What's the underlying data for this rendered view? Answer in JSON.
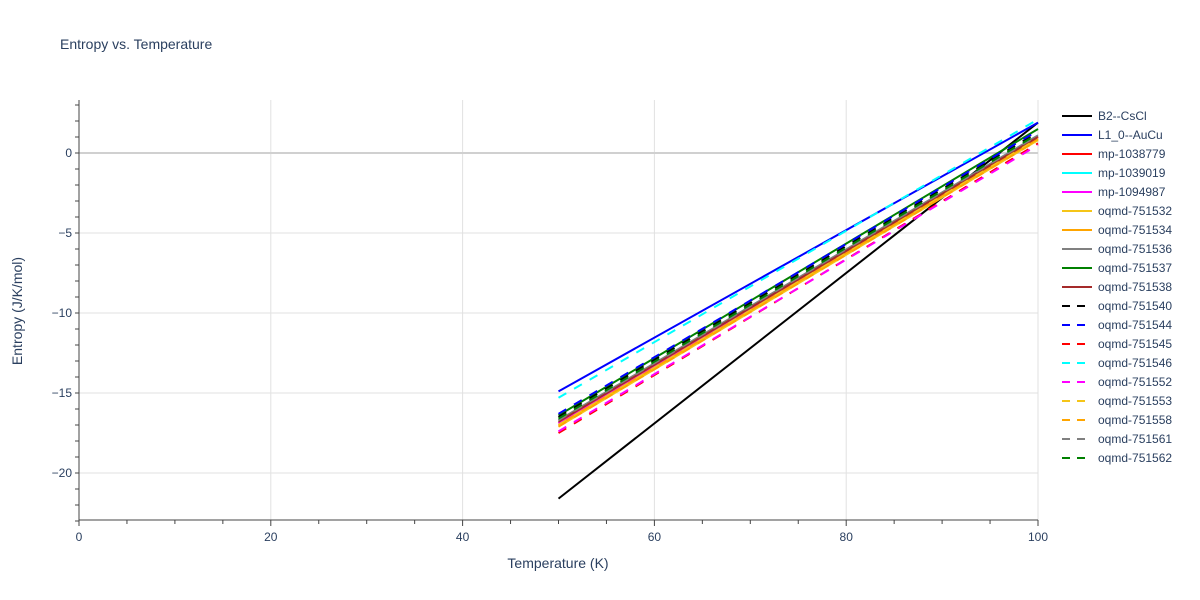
{
  "chart_data": {
    "type": "line",
    "title": "Entropy vs. Temperature",
    "xlabel": "Temperature (K)",
    "ylabel": "Entropy (J/K/mol)",
    "xlim": [
      0,
      100
    ],
    "ylim": [
      -23,
      3.3
    ],
    "xticks": [
      0,
      20,
      40,
      60,
      80,
      100
    ],
    "yticks": [
      -20,
      -15,
      -10,
      -5,
      0
    ],
    "grid": true,
    "legend_position": "right",
    "x": [
      50,
      100
    ],
    "series": [
      {
        "name": "B2--CsCl",
        "color": "#000000",
        "dash": "solid",
        "values": [
          -21.6,
          1.9
        ]
      },
      {
        "name": "L1_0--AuCu",
        "color": "#0000ff",
        "dash": "solid",
        "values": [
          -14.9,
          1.9
        ]
      },
      {
        "name": "mp-1038779",
        "color": "#ff0000",
        "dash": "solid",
        "values": [
          -16.9,
          1.0
        ]
      },
      {
        "name": "mp-1039019",
        "color": "#00ffff",
        "dash": "solid",
        "values": [
          -16.8,
          1.1
        ]
      },
      {
        "name": "mp-1094987",
        "color": "#ff00ff",
        "dash": "solid",
        "values": [
          -16.9,
          1.0
        ]
      },
      {
        "name": "oqmd-751532",
        "color": "#f5c518",
        "dash": "solid",
        "values": [
          -17.1,
          0.8
        ]
      },
      {
        "name": "oqmd-751534",
        "color": "#ffa500",
        "dash": "solid",
        "values": [
          -17.0,
          0.9
        ]
      },
      {
        "name": "oqmd-751536",
        "color": "#808080",
        "dash": "solid",
        "values": [
          -16.7,
          1.1
        ]
      },
      {
        "name": "oqmd-751537",
        "color": "#008000",
        "dash": "solid",
        "values": [
          -16.4,
          1.5
        ]
      },
      {
        "name": "oqmd-751538",
        "color": "#a52a2a",
        "dash": "solid",
        "values": [
          -16.8,
          1.0
        ]
      },
      {
        "name": "oqmd-751540",
        "color": "#000000",
        "dash": "dash",
        "values": [
          -16.5,
          1.3
        ]
      },
      {
        "name": "oqmd-751544",
        "color": "#0000ff",
        "dash": "dash",
        "values": [
          -16.3,
          1.4
        ]
      },
      {
        "name": "oqmd-751545",
        "color": "#ff0000",
        "dash": "dash",
        "values": [
          -17.5,
          0.6
        ]
      },
      {
        "name": "oqmd-751546",
        "color": "#00ffff",
        "dash": "dash",
        "values": [
          -15.3,
          2.1
        ]
      },
      {
        "name": "oqmd-751552",
        "color": "#ff00ff",
        "dash": "dash",
        "values": [
          -17.4,
          0.5
        ]
      },
      {
        "name": "oqmd-751553",
        "color": "#f5c518",
        "dash": "dash",
        "values": [
          -17.0,
          0.9
        ]
      },
      {
        "name": "oqmd-751558",
        "color": "#ffa500",
        "dash": "dash",
        "values": [
          -17.1,
          0.8
        ]
      },
      {
        "name": "oqmd-751561",
        "color": "#808080",
        "dash": "dash",
        "values": [
          -16.7,
          1.1
        ]
      },
      {
        "name": "oqmd-751562",
        "color": "#008000",
        "dash": "dash",
        "values": [
          -16.6,
          1.2
        ]
      }
    ]
  }
}
